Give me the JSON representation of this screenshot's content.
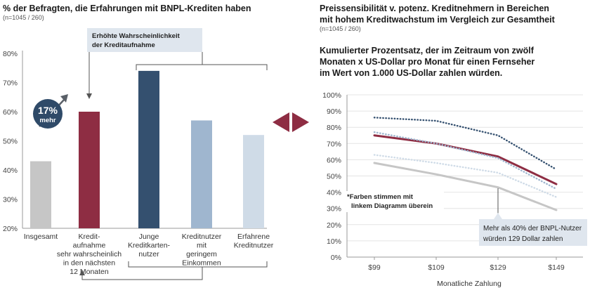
{
  "left": {
    "title": "% der Befragten, die Erfahrungen mit BNPL-Krediten haben",
    "subtitle": "(n=1045 /    260)",
    "callout": [
      "Erhöhte Wahrscheinlichkeit",
      "der Kreditaufnahme"
    ],
    "badge": [
      "17%",
      "mehr"
    ]
  },
  "right": {
    "title": [
      "Preissensibilität v. potenz. Kreditnehmern in Bereichen",
      "mit hohem Kreditwachstum im Vergleich zur Gesamtheit"
    ],
    "subtitle": "(n=1045 / 260)",
    "chart_title": [
      "Kumulierter Prozentsatz, der im Zeitraum von zwölf",
      "Monaten x US-Dollar pro Monat für einen Fernseher",
      "im Wert von 1.000 US-Dollar zahlen würden."
    ],
    "note": [
      "*Farben stimmen mit",
      "linkem Diagramm überein"
    ],
    "callout": [
      "Mehr als 40% der BNPL-Nutzer",
      "würden 129 Dollar zahlen"
    ]
  },
  "colors": {
    "gray": "#c6c6c6",
    "red": "#8e2d43",
    "navy": "#34506f",
    "steel": "#9fb6cf",
    "pale": "#cfdbe7",
    "box": "#dfe6ee",
    "ring": "#2f4a68",
    "arrow": "#5a6068"
  },
  "chart_data": [
    {
      "type": "bar",
      "title": "% der Befragten, die Erfahrungen mit BNPL-Krediten haben",
      "ylim": [
        20,
        80
      ],
      "yticks": [
        "20%",
        "30%",
        "40%",
        "50%",
        "60%",
        "70%",
        "80%"
      ],
      "categories": [
        [
          "Insgesamt"
        ],
        [
          "Kredit-",
          "aufnahme",
          "sehr wahrscheinlich",
          "in den nächsten",
          "12 Monaten"
        ],
        [
          "Junge",
          "Kreditkarten-",
          "nutzer"
        ],
        [
          "Kreditnutzer",
          "mit",
          "geringem",
          "Einkommen"
        ],
        [
          "Erfahrene",
          "Kreditnutzer"
        ]
      ],
      "values": [
        43,
        60,
        74,
        57,
        52
      ],
      "colors": [
        "gray",
        "red",
        "navy",
        "steel",
        "pale"
      ]
    },
    {
      "type": "line",
      "title": "Kumulierter Prozentsatz, der im Zeitraum von zwölf Monaten x US-Dollar pro Monat für einen Fernseher im Wert von 1.000 US-Dollar zahlen würden.",
      "xlabel": "Monatliche Zahlung",
      "x": [
        "$99",
        "$109",
        "$129",
        "$149"
      ],
      "ylim": [
        0,
        100
      ],
      "yticks": [
        "0%",
        "10%",
        "20%",
        "30%",
        "40%",
        "50%",
        "60%",
        "70%",
        "80%",
        "90%",
        "100%"
      ],
      "series": [
        {
          "name": "Junge Kreditkartennutzer",
          "color": "navy",
          "style": "dotted",
          "values": [
            86,
            84,
            75,
            54
          ]
        },
        {
          "name": "Kreditaufnahme sehr wahrscheinlich",
          "color": "red",
          "style": "solid",
          "values": [
            75,
            70,
            62,
            45
          ]
        },
        {
          "name": "Kreditnutzer mit geringem Einkommen",
          "color": "steel",
          "style": "dotted",
          "values": [
            77,
            70,
            61,
            42
          ]
        },
        {
          "name": "Erfahrene Kreditnutzer",
          "color": "pale",
          "style": "dotted",
          "values": [
            63,
            58,
            52,
            37
          ]
        },
        {
          "name": "Insgesamt",
          "color": "gray",
          "style": "solid",
          "values": [
            58,
            51,
            43,
            29
          ]
        }
      ]
    }
  ]
}
